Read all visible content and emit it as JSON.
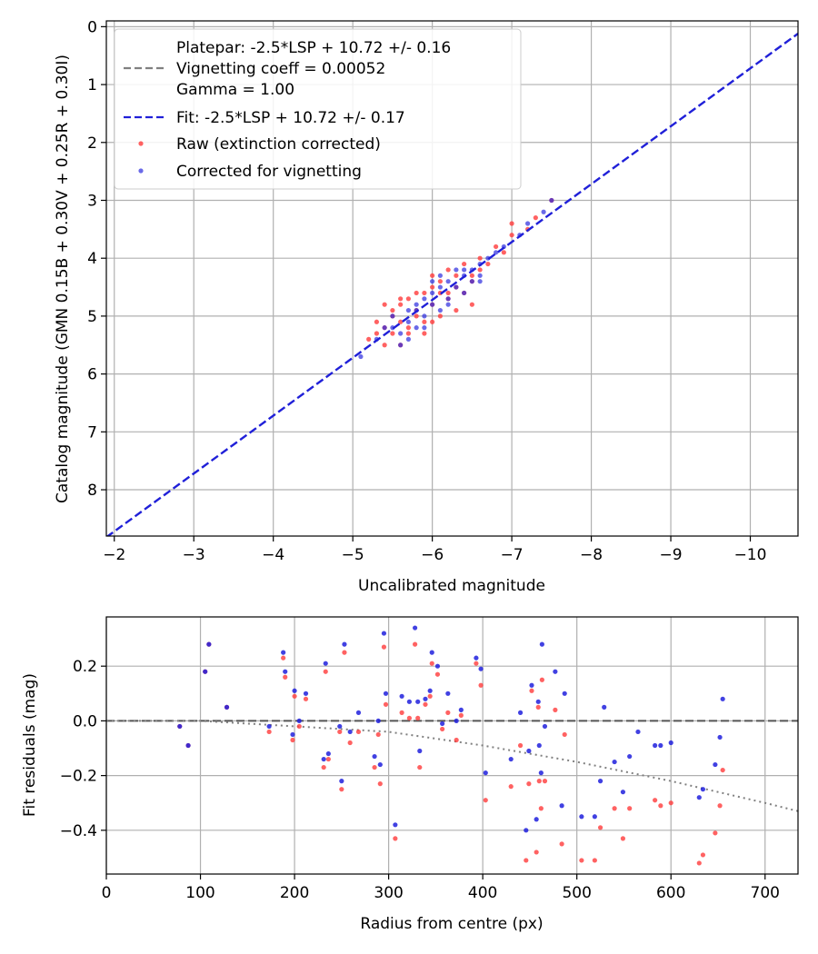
{
  "chart_data": [
    {
      "type": "scatter",
      "xlabel": "Uncalibrated magnitude",
      "ylabel": "Catalog magnitude (GMN 0.15B + 0.30V + 0.25R + 0.30I)",
      "xlim": [
        -1.9,
        -10.6
      ],
      "ylim": [
        8.8,
        -0.1
      ],
      "x_ticks": [
        -2,
        -3,
        -4,
        -5,
        -6,
        -7,
        -8,
        -9,
        -10
      ],
      "x_tick_labels": [
        "−2",
        "−3",
        "−4",
        "−5",
        "−6",
        "−7",
        "−8",
        "−9",
        "−10"
      ],
      "y_ticks": [
        0,
        1,
        2,
        3,
        4,
        5,
        6,
        7,
        8
      ],
      "y_tick_labels": [
        "0",
        "1",
        "2",
        "3",
        "4",
        "5",
        "6",
        "7",
        "8"
      ],
      "grid": true,
      "legend_position": "top-left",
      "legend": {
        "platepar_lines": [
          "Platepar: -2.5*LSP + 10.72 +/- 0.16",
          "Vignetting coeff = 0.00052",
          "Gamma = 1.00"
        ],
        "fit_label": "Fit: -2.5*LSP + 10.72 +/- 0.17",
        "raw_label": "Raw (extinction corrected)",
        "corrected_label": "Corrected for vignetting"
      },
      "fit_line": {
        "slope": 1.0,
        "intercept": 10.72,
        "color": "#2020d8"
      },
      "platepar_line": {
        "color": "#808080"
      },
      "series": [
        {
          "name": "Raw (extinction corrected)",
          "color": "#ff3b3b",
          "points": [
            [
              -5.2,
              5.4
            ],
            [
              -5.3,
              5.3
            ],
            [
              -5.3,
              5.1
            ],
            [
              -5.4,
              5.2
            ],
            [
              -5.4,
              5.5
            ],
            [
              -5.4,
              4.8
            ],
            [
              -5.5,
              5.0
            ],
            [
              -5.5,
              5.3
            ],
            [
              -5.5,
              4.9
            ],
            [
              -5.6,
              5.1
            ],
            [
              -5.6,
              4.8
            ],
            [
              -5.6,
              5.5
            ],
            [
              -5.7,
              5.2
            ],
            [
              -5.7,
              4.7
            ],
            [
              -5.8,
              5.0
            ],
            [
              -5.8,
              4.6
            ],
            [
              -5.8,
              4.9
            ],
            [
              -5.9,
              4.6
            ],
            [
              -5.9,
              5.1
            ],
            [
              -6.0,
              4.8
            ],
            [
              -6.0,
              4.5
            ],
            [
              -6.0,
              4.3
            ],
            [
              -6.1,
              4.4
            ],
            [
              -6.1,
              5.0
            ],
            [
              -6.2,
              4.2
            ],
            [
              -6.2,
              4.7
            ],
            [
              -6.3,
              4.3
            ],
            [
              -6.3,
              4.9
            ],
            [
              -6.4,
              4.6
            ],
            [
              -6.4,
              4.1
            ],
            [
              -6.5,
              4.4
            ],
            [
              -6.5,
              4.3
            ],
            [
              -6.6,
              4.2
            ],
            [
              -6.6,
              4.0
            ],
            [
              -6.7,
              4.1
            ],
            [
              -6.8,
              3.8
            ],
            [
              -6.9,
              3.9
            ],
            [
              -7.0,
              3.6
            ],
            [
              -7.0,
              3.4
            ],
            [
              -7.2,
              3.5
            ],
            [
              -7.3,
              3.3
            ],
            [
              -7.5,
              3.0
            ],
            [
              -5.7,
              5.3
            ],
            [
              -6.1,
              4.6
            ],
            [
              -5.9,
              5.3
            ],
            [
              -6.5,
              4.8
            ],
            [
              -6.3,
              4.5
            ],
            [
              -5.6,
              4.7
            ],
            [
              -6.0,
              5.1
            ],
            [
              -6.2,
              4.6
            ]
          ]
        },
        {
          "name": "Corrected for vignetting",
          "color": "#2b2bde",
          "points": [
            [
              -5.1,
              5.7
            ],
            [
              -5.3,
              5.4
            ],
            [
              -5.4,
              5.2
            ],
            [
              -5.5,
              5.0
            ],
            [
              -5.6,
              5.3
            ],
            [
              -5.6,
              5.5
            ],
            [
              -5.7,
              5.1
            ],
            [
              -5.7,
              4.9
            ],
            [
              -5.8,
              5.2
            ],
            [
              -5.8,
              4.8
            ],
            [
              -5.9,
              4.7
            ],
            [
              -5.9,
              5.0
            ],
            [
              -6.0,
              4.8
            ],
            [
              -6.0,
              4.6
            ],
            [
              -6.1,
              4.5
            ],
            [
              -6.1,
              4.3
            ],
            [
              -6.2,
              4.7
            ],
            [
              -6.2,
              4.4
            ],
            [
              -6.3,
              4.5
            ],
            [
              -6.3,
              4.2
            ],
            [
              -6.4,
              4.3
            ],
            [
              -6.4,
              4.6
            ],
            [
              -6.5,
              4.2
            ],
            [
              -6.5,
              4.4
            ],
            [
              -6.6,
              4.1
            ],
            [
              -6.6,
              4.3
            ],
            [
              -6.7,
              4.0
            ],
            [
              -6.8,
              3.9
            ],
            [
              -6.9,
              3.8
            ],
            [
              -7.1,
              3.6
            ],
            [
              -7.2,
              3.4
            ],
            [
              -7.4,
              3.2
            ],
            [
              -7.5,
              3.0
            ],
            [
              -5.5,
              5.2
            ],
            [
              -5.7,
              5.4
            ],
            [
              -6.0,
              4.4
            ],
            [
              -6.2,
              4.8
            ],
            [
              -6.4,
              4.2
            ],
            [
              -5.8,
              4.9
            ],
            [
              -6.1,
              4.9
            ],
            [
              -5.9,
              5.2
            ],
            [
              -6.6,
              4.4
            ]
          ]
        }
      ]
    },
    {
      "type": "scatter",
      "xlabel": "Radius from centre (px)",
      "ylabel": "Fit residuals (mag)",
      "xlim": [
        0,
        735
      ],
      "ylim": [
        -0.56,
        0.38
      ],
      "x_ticks": [
        0,
        100,
        200,
        300,
        400,
        500,
        600,
        700
      ],
      "x_tick_labels": [
        "0",
        "100",
        "200",
        "300",
        "400",
        "500",
        "600",
        "700"
      ],
      "y_ticks": [
        -0.4,
        -0.2,
        0.0,
        0.2
      ],
      "y_tick_labels": [
        "−0.4",
        "−0.2",
        "0.0",
        "0.2"
      ],
      "grid": true,
      "zero_line": {
        "value": 0.0,
        "color": "#555555"
      },
      "vignetting_curve": {
        "color": "#808080",
        "points": [
          [
            0,
            0.0
          ],
          [
            100,
            0.0
          ],
          [
            200,
            -0.02
          ],
          [
            300,
            -0.04
          ],
          [
            400,
            -0.09
          ],
          [
            500,
            -0.15
          ],
          [
            600,
            -0.22
          ],
          [
            700,
            -0.3
          ],
          [
            735,
            -0.33
          ]
        ]
      },
      "series": [
        {
          "name": "",
          "color": "#ff3b3b",
          "points": [
            [
              78,
              -0.02
            ],
            [
              87,
              -0.09
            ],
            [
              105,
              0.18
            ],
            [
              109,
              0.28
            ],
            [
              128,
              0.05
            ],
            [
              173,
              -0.04
            ],
            [
              188,
              0.23
            ],
            [
              190,
              0.16
            ],
            [
              198,
              -0.07
            ],
            [
              200,
              0.09
            ],
            [
              205,
              -0.02
            ],
            [
              212,
              0.08
            ],
            [
              231,
              -0.17
            ],
            [
              233,
              0.18
            ],
            [
              236,
              -0.14
            ],
            [
              248,
              -0.04
            ],
            [
              250,
              -0.25
            ],
            [
              253,
              0.25
            ],
            [
              259,
              -0.08
            ],
            [
              268,
              -0.04
            ],
            [
              285,
              -0.17
            ],
            [
              289,
              -0.05
            ],
            [
              291,
              -0.23
            ],
            [
              295,
              0.27
            ],
            [
              297,
              0.06
            ],
            [
              307,
              -0.43
            ],
            [
              314,
              0.03
            ],
            [
              322,
              0.01
            ],
            [
              328,
              0.28
            ],
            [
              331,
              0.01
            ],
            [
              333,
              -0.17
            ],
            [
              339,
              0.06
            ],
            [
              344,
              0.09
            ],
            [
              346,
              0.21
            ],
            [
              352,
              0.17
            ],
            [
              357,
              -0.03
            ],
            [
              363,
              0.03
            ],
            [
              372,
              -0.07
            ],
            [
              377,
              0.02
            ],
            [
              393,
              0.21
            ],
            [
              398,
              0.13
            ],
            [
              403,
              -0.29
            ],
            [
              430,
              -0.24
            ],
            [
              440,
              -0.09
            ],
            [
              446,
              -0.51
            ],
            [
              449,
              -0.23
            ],
            [
              452,
              0.11
            ],
            [
              457,
              -0.48
            ],
            [
              459,
              0.05
            ],
            [
              460,
              -0.22
            ],
            [
              462,
              -0.32
            ],
            [
              463,
              0.15
            ],
            [
              466,
              -0.22
            ],
            [
              477,
              0.04
            ],
            [
              484,
              -0.45
            ],
            [
              487,
              -0.05
            ],
            [
              505,
              -0.51
            ],
            [
              519,
              -0.51
            ],
            [
              525,
              -0.39
            ],
            [
              540,
              -0.32
            ],
            [
              549,
              -0.43
            ],
            [
              556,
              -0.32
            ],
            [
              583,
              -0.29
            ],
            [
              589,
              -0.31
            ],
            [
              600,
              -0.3
            ],
            [
              630,
              -0.52
            ],
            [
              634,
              -0.49
            ],
            [
              647,
              -0.41
            ],
            [
              652,
              -0.31
            ],
            [
              655,
              -0.18
            ]
          ]
        },
        {
          "name": "",
          "color": "#2020dd",
          "points": [
            [
              78,
              -0.02
            ],
            [
              87,
              -0.09
            ],
            [
              105,
              0.18
            ],
            [
              109,
              0.28
            ],
            [
              128,
              0.05
            ],
            [
              173,
              -0.02
            ],
            [
              188,
              0.25
            ],
            [
              190,
              0.18
            ],
            [
              198,
              -0.05
            ],
            [
              200,
              0.11
            ],
            [
              205,
              0.0
            ],
            [
              212,
              0.1
            ],
            [
              231,
              -0.14
            ],
            [
              233,
              0.21
            ],
            [
              236,
              -0.12
            ],
            [
              248,
              -0.02
            ],
            [
              250,
              -0.22
            ],
            [
              253,
              0.28
            ],
            [
              259,
              -0.04
            ],
            [
              268,
              0.03
            ],
            [
              285,
              -0.13
            ],
            [
              289,
              0.0
            ],
            [
              291,
              -0.16
            ],
            [
              295,
              0.32
            ],
            [
              297,
              0.1
            ],
            [
              307,
              -0.38
            ],
            [
              314,
              0.09
            ],
            [
              322,
              0.07
            ],
            [
              328,
              0.34
            ],
            [
              331,
              0.07
            ],
            [
              333,
              -0.11
            ],
            [
              339,
              0.08
            ],
            [
              344,
              0.11
            ],
            [
              346,
              0.25
            ],
            [
              352,
              0.2
            ],
            [
              357,
              -0.01
            ],
            [
              363,
              0.1
            ],
            [
              372,
              0.0
            ],
            [
              377,
              0.04
            ],
            [
              393,
              0.23
            ],
            [
              398,
              0.19
            ],
            [
              403,
              -0.19
            ],
            [
              430,
              -0.14
            ],
            [
              440,
              0.03
            ],
            [
              446,
              -0.4
            ],
            [
              449,
              -0.11
            ],
            [
              452,
              0.13
            ],
            [
              457,
              -0.36
            ],
            [
              459,
              0.07
            ],
            [
              460,
              -0.09
            ],
            [
              462,
              -0.19
            ],
            [
              463,
              0.28
            ],
            [
              466,
              -0.02
            ],
            [
              477,
              0.18
            ],
            [
              484,
              -0.31
            ],
            [
              487,
              0.1
            ],
            [
              505,
              -0.35
            ],
            [
              519,
              -0.35
            ],
            [
              525,
              -0.22
            ],
            [
              529,
              0.05
            ],
            [
              540,
              -0.15
            ],
            [
              549,
              -0.26
            ],
            [
              556,
              -0.13
            ],
            [
              565,
              -0.04
            ],
            [
              583,
              -0.09
            ],
            [
              589,
              -0.09
            ],
            [
              600,
              -0.08
            ],
            [
              630,
              -0.28
            ],
            [
              634,
              -0.25
            ],
            [
              647,
              -0.16
            ],
            [
              652,
              -0.06
            ],
            [
              655,
              0.08
            ]
          ]
        }
      ]
    }
  ]
}
